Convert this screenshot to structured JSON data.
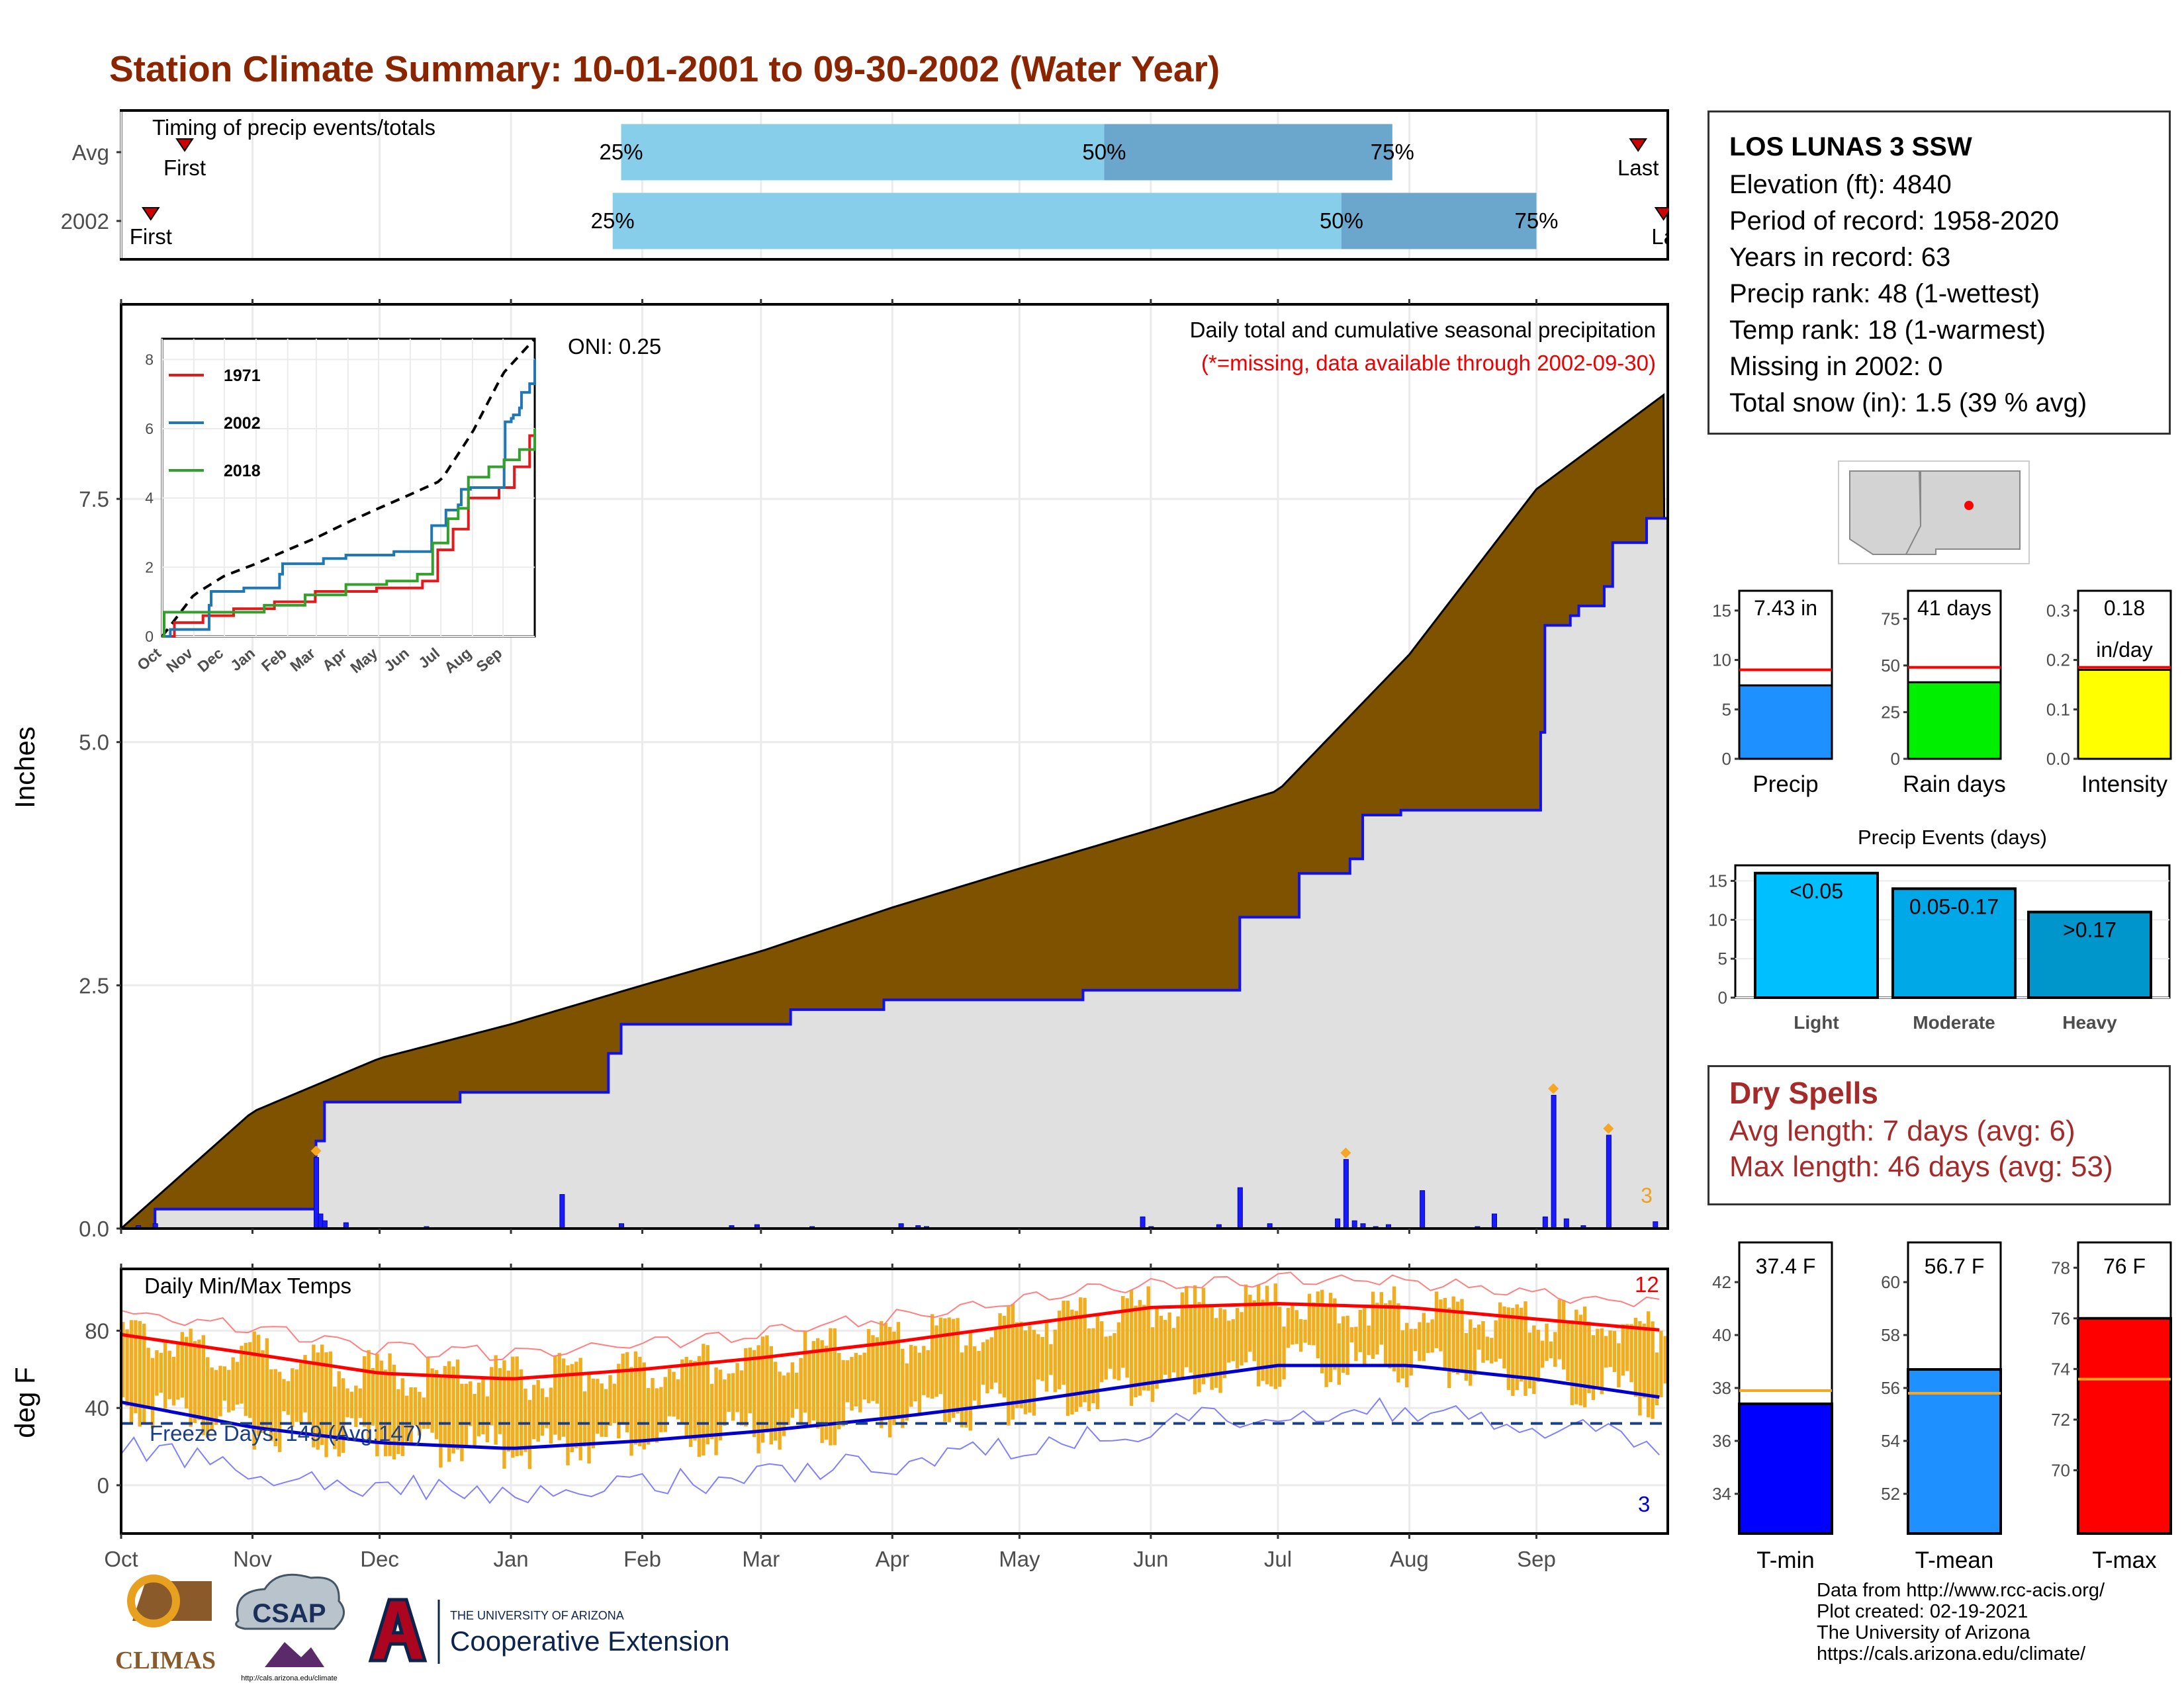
{
  "title": "Station Climate Summary: 10-01-2001 to 09-30-2002 (Water Year)",
  "colors": {
    "title": "#8b2500",
    "cumulative_fill": "#7f5200",
    "current_fill": "#e0e0e0",
    "current_line": "#1010ee",
    "bar_light": "#87ceeb",
    "bar_dark": "#6ba6cd",
    "tmax_line": "#ff0000",
    "tmin_line": "#0000cd",
    "temp_range": "#f0ad1e",
    "dry_spell": "#a52a2a"
  },
  "timing": {
    "label": "Timing of precip events/totals",
    "rows": [
      {
        "name": "Avg",
        "first_label": "First",
        "last_label": "Last",
        "first_doy": 15,
        "last_doy": 358,
        "p25": 118,
        "p50": 232,
        "p75": 300
      },
      {
        "name": "2002",
        "first_label": "First",
        "last_label": "La",
        "first_doy": 7,
        "last_doy": 364,
        "p25": 116,
        "p50": 288,
        "p75": 334
      }
    ],
    "pct_labels": [
      "25%",
      "50%",
      "75%"
    ]
  },
  "precip_panel": {
    "ylabel": "Inches",
    "yticks": [
      "0.0",
      "2.5",
      "5.0",
      "7.5"
    ],
    "title": "Daily total and cumulative seasonal precipitation",
    "subtitle": "(*=missing, data available through 2002-09-30)",
    "oni": "ONI: 0.25",
    "corner_count": "3",
    "inset": {
      "legend": [
        "1971",
        "2002",
        "2018"
      ],
      "yticks": [
        "0",
        "2",
        "4",
        "6",
        "8"
      ],
      "months": [
        "Oct",
        "Nov",
        "Dec",
        "Jan",
        "Feb",
        "Mar",
        "Apr",
        "May",
        "Jun",
        "Jul",
        "Aug",
        "Sep"
      ]
    }
  },
  "temp_panel": {
    "ylabel": "deg F",
    "title": "Daily Min/Max Temps",
    "yticks": [
      "0",
      "40",
      "80"
    ],
    "freeze_label": "Freeze Days: 149 (Avg:147)",
    "max_count": "12",
    "min_count": "3"
  },
  "months": [
    "Oct",
    "Nov",
    "Dec",
    "Jan",
    "Feb",
    "Mar",
    "Apr",
    "May",
    "Jun",
    "Jul",
    "Aug",
    "Sep"
  ],
  "station": {
    "name": "LOS LUNAS 3 SSW",
    "lines": [
      "Elevation (ft): 4840",
      "Period of record: 1958-2020",
      "Years in record: 63",
      "Precip rank: 48 (1-wettest)",
      "Temp rank: 18 (1-warmest)",
      "Missing in 2002: 0",
      "Total snow (in): 1.5 (39 % avg)"
    ]
  },
  "mini_bars": [
    {
      "label": "Precip",
      "value_text": "7.43 in",
      "value": 7.43,
      "avg": 9.0,
      "ymax": 17,
      "yticks": [
        "0",
        "5",
        "10",
        "15"
      ],
      "color": "#1e90ff"
    },
    {
      "label": "Rain days",
      "value_text": "41 days",
      "value": 41,
      "avg": 49,
      "ymax": 90,
      "yticks": [
        "0",
        "25",
        "50",
        "75"
      ],
      "color": "#00ee00"
    },
    {
      "label": "Intensity",
      "value_text": "0.18",
      "value_text2": "in/day",
      "value": 0.18,
      "avg": 0.185,
      "ymax": 0.34,
      "yticks": [
        "0.0",
        "0.1",
        "0.2",
        "0.3"
      ],
      "color": "#ffff00"
    }
  ],
  "events": {
    "title": "Precip Events (days)",
    "yticks": [
      "0",
      "5",
      "10",
      "15"
    ],
    "bars": [
      {
        "label": "Light",
        "value_text": "<0.05",
        "value": 16,
        "color": "#00bfff"
      },
      {
        "label": "Moderate",
        "value_text": "0.05-0.17",
        "value": 14,
        "color": "#00a8e8"
      },
      {
        "label": "Heavy",
        "value_text": ">0.17",
        "value": 11,
        "color": "#0096cc"
      }
    ]
  },
  "dry_spells": {
    "title": "Dry Spells",
    "lines": [
      "Avg length: 7 days (avg: 6)",
      "Max length: 46 days (avg: 53)"
    ]
  },
  "temp_bars": [
    {
      "label": "T-min",
      "value_text": "37.4 F",
      "value": 37.4,
      "avg": 37.9,
      "ymin": 32.5,
      "ymax": 43.5,
      "yticks": [
        34,
        36,
        38,
        40,
        42
      ],
      "color": "#0000ff"
    },
    {
      "label": "T-mean",
      "value_text": "56.7 F",
      "value": 56.7,
      "avg": 55.8,
      "ymin": 50.5,
      "ymax": 61.5,
      "yticks": [
        52,
        54,
        56,
        58,
        60
      ],
      "color": "#1e90ff"
    },
    {
      "label": "T-max",
      "value_text": "76 F",
      "value": 76.0,
      "avg": 73.6,
      "ymin": 67.5,
      "ymax": 79,
      "yticks": [
        70,
        72,
        74,
        76,
        78
      ],
      "color": "#ff0000"
    }
  ],
  "footer": {
    "lines": [
      "Data from http://www.rcc-acis.org/",
      "Plot created: 02-19-2021",
      "The University of Arizona",
      "https://cals.arizona.edu/climate/"
    ],
    "logo_climas": "CLIMAS",
    "logo_csap": "CSAP",
    "logo_csap_url": "http://cals.arizona.edu/climate",
    "ua_small": "THE UNIVERSITY OF ARIZONA",
    "ua_big": "Cooperative Extension"
  },
  "chart_data": [
    {
      "type": "line",
      "title": "Daily total and cumulative seasonal precipitation",
      "ylabel": "Inches",
      "ylim": [
        0,
        9.5
      ],
      "x_unit": "day of water year",
      "series": [
        {
          "name": "Avg cumulative",
          "x": [
            0,
            31,
            61,
            92,
            123,
            151,
            182,
            212,
            243,
            273,
            304,
            334,
            365
          ],
          "values": [
            0,
            1.2,
            1.75,
            2.1,
            2.5,
            2.85,
            3.3,
            3.7,
            4.1,
            4.5,
            5.9,
            7.6,
            8.6
          ]
        },
        {
          "name": "2002 cumulative",
          "x": [
            0,
            7,
            8,
            45,
            46,
            48,
            80,
            115,
            118,
            158,
            180,
            215,
            227,
            228,
            262,
            264,
            278,
            290,
            293,
            302,
            335,
            336,
            342,
            344,
            350,
            352,
            360,
            365
          ],
          "values": [
            0,
            0.0,
            0.2,
            0.2,
            0.9,
            1.3,
            1.4,
            1.8,
            2.1,
            2.25,
            2.35,
            2.35,
            2.45,
            2.45,
            2.45,
            3.2,
            3.65,
            3.8,
            4.25,
            4.3,
            5.1,
            6.2,
            6.3,
            6.4,
            6.6,
            7.05,
            7.3,
            7.43
          ]
        }
      ],
      "daily_bars": {
        "x": [
          4,
          8,
          46,
          47,
          48,
          53,
          72,
          104,
          118,
          144,
          150,
          163,
          184,
          188,
          190,
          241,
          243,
          259,
          264,
          271,
          287,
          289,
          291,
          293,
          296,
          299,
          307,
          320,
          324,
          336,
          338,
          341,
          345,
          351,
          362
        ],
        "values": [
          0.03,
          0.05,
          0.73,
          0.15,
          0.08,
          0.06,
          0.02,
          0.35,
          0.05,
          0.03,
          0.04,
          0.02,
          0.05,
          0.03,
          0.02,
          0.12,
          0.02,
          0.04,
          0.42,
          0.05,
          0.1,
          0.71,
          0.08,
          0.05,
          0.02,
          0.04,
          0.39,
          0.02,
          0.15,
          0.12,
          1.37,
          0.1,
          0.03,
          0.96,
          0.07
        ]
      }
    },
    {
      "type": "line",
      "title": "Daily Min/Max Temps",
      "ylabel": "deg F",
      "ylim": [
        -25,
        112
      ],
      "x_unit": "day of water year",
      "series": [
        {
          "name": "Avg Tmax",
          "x": [
            0,
            31,
            61,
            92,
            123,
            151,
            182,
            212,
            243,
            273,
            304,
            334,
            365
          ],
          "values": [
            78,
            68,
            58,
            55,
            60,
            66,
            74,
            83,
            92,
            94,
            92,
            86,
            80
          ]
        },
        {
          "name": "Avg Tmin",
          "x": [
            0,
            31,
            61,
            92,
            123,
            151,
            182,
            212,
            243,
            273,
            304,
            334,
            365
          ],
          "values": [
            43,
            30,
            22,
            19,
            23,
            28,
            35,
            43,
            53,
            62,
            62,
            55,
            45
          ]
        },
        {
          "name": "Freeze line",
          "x": [
            0,
            365
          ],
          "values": [
            32,
            32
          ]
        }
      ]
    },
    {
      "type": "bar",
      "title": "Precip Events (days)",
      "categories": [
        "Light",
        "Moderate",
        "Heavy"
      ],
      "values": [
        16,
        14,
        11
      ],
      "ylim": [
        0,
        17
      ]
    }
  ]
}
